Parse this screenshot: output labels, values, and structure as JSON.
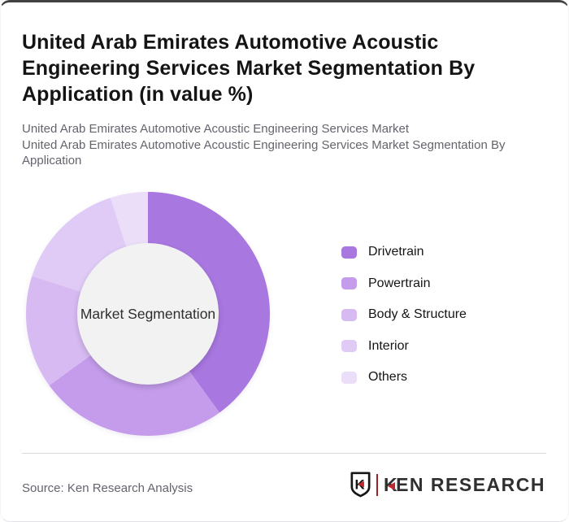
{
  "card": {
    "title_lines": [
      "United Arab Emirates Automotive Acoustic",
      "Engineering Services Market Segmentation By",
      "Application (in value %)"
    ],
    "subtitle_line1": "United Arab Emirates Automotive Acoustic Engineering Services Market",
    "subtitle_line2a": "United Arab Emirates Automotive Acoustic Engineering Services Market Segmentation By",
    "subtitle_line2b": "Application"
  },
  "chart_data": {
    "type": "pie",
    "subtype": "donut",
    "title": "United Arab Emirates Automotive Acoustic Engineering Services Market Segmentation By Application (in value %)",
    "center_label": "Market Segmentation",
    "units": "value %",
    "start_angle_deg": 0,
    "direction": "clockwise",
    "legend_position": "right",
    "segments": [
      {
        "label": "Drivetrain",
        "value": 40,
        "color": "#a877e0"
      },
      {
        "label": "Powertrain",
        "value": 25,
        "color": "#c49ceb"
      },
      {
        "label": "Body & Structure",
        "value": 15,
        "color": "#d6baf1"
      },
      {
        "label": "Interior",
        "value": 15,
        "color": "#dfcbf5"
      },
      {
        "label": "Others",
        "value": 5,
        "color": "#ebdef9"
      }
    ],
    "inner_circle_color": "#f2f2f3",
    "center_label_color": "#2e2e2e"
  },
  "footer": {
    "source": "Source: Ken Research Analysis",
    "logo": {
      "shield_letter": "K",
      "brand_first_letter": "K",
      "brand_rest": "EN RESEARCH",
      "accent_color": "#c1272d",
      "separator_color": "#9b2226",
      "text_color": "#2f2f2f"
    }
  }
}
